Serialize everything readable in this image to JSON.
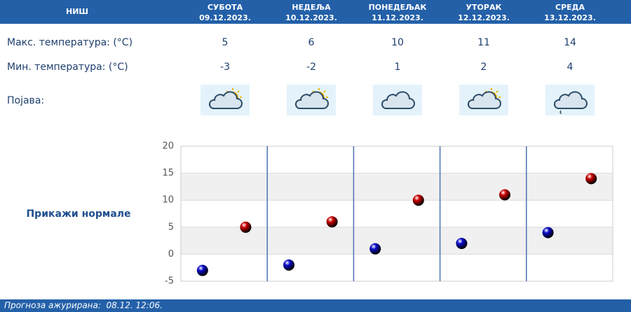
{
  "header": {
    "city": "НИШ",
    "days": [
      {
        "name": "СУБОТА",
        "date": "09.12.2023."
      },
      {
        "name": "НЕДЕЉА",
        "date": "10.12.2023."
      },
      {
        "name": "ПОНЕДЕЉАК",
        "date": "11.12.2023."
      },
      {
        "name": "УТОРАК",
        "date": "12.12.2023."
      },
      {
        "name": "СРЕДА",
        "date": "13.12.2023."
      }
    ]
  },
  "rows": {
    "weather_label": "Појава:"
  },
  "link": "Прикажи нормале",
  "footer": "Прогноза ажурирана:  08.12. 12:06.",
  "chart_data": {
    "type": "scatter",
    "series": [
      {
        "name": "Мин. температура: (°C)",
        "color": "#0a0acc",
        "values": [
          -3,
          -2,
          1,
          2,
          4
        ]
      },
      {
        "name": "Макс. температура: (°C)",
        "color": "#cc0000",
        "values": [
          5,
          6,
          10,
          11,
          14
        ]
      }
    ],
    "ylim": [
      -5,
      20
    ],
    "yticks": [
      -5,
      0,
      5,
      10,
      15,
      20
    ],
    "grid": true
  }
}
